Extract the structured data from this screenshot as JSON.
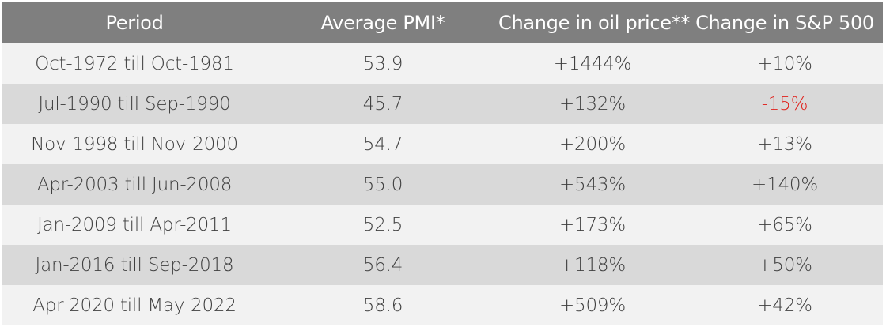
{
  "table": {
    "headers": [
      "Period",
      "Average PMI*",
      "Change in oil price**",
      "Change in S&P 500"
    ],
    "rows": [
      {
        "period": "Oct-1972 till Oct-1981",
        "pmi": "53.9",
        "oil": "+1444%",
        "sp500": "+10%"
      },
      {
        "period": "Jul-1990 till Sep-1990",
        "pmi": "45.7",
        "oil": "+132%",
        "sp500": "-15%"
      },
      {
        "period": "Nov-1998 till Nov-2000",
        "pmi": "54.7",
        "oil": "+200%",
        "sp500": "+13%"
      },
      {
        "period": "Apr-2003 till Jun-2008",
        "pmi": "55.0",
        "oil": "+543%",
        "sp500": "+140%"
      },
      {
        "period": "Jan-2009 till Apr-2011",
        "pmi": "52.5",
        "oil": "+173%",
        "sp500": "+65%"
      },
      {
        "period": "Jan-2016 till Sep-2018",
        "pmi": "56.4",
        "oil": "+118%",
        "sp500": "+50%"
      },
      {
        "period": "Apr-2020 till May-2022",
        "pmi": "58.6",
        "oil": "+509%",
        "sp500": "+42%"
      }
    ]
  },
  "colors": {
    "header_bg": "#7f7f7f",
    "row_light": "#f2f2f2",
    "row_dark": "#d9d9d9",
    "text": "#404040",
    "negative": "#e0201b"
  }
}
